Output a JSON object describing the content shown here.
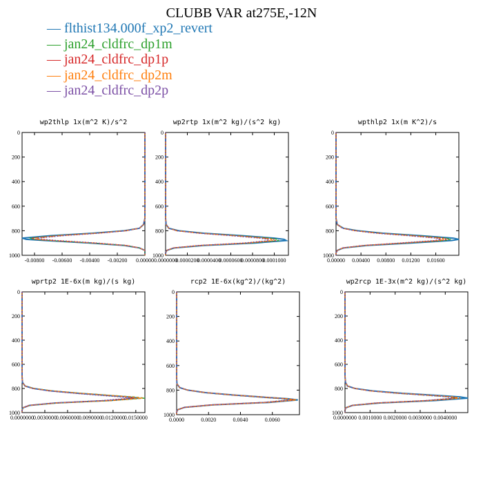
{
  "title": "CLUBB VAR at275E,-12N",
  "legend": [
    {
      "label": "flthist134.000f_xp2_revert",
      "color": "#1f77b4"
    },
    {
      "label": "jan24_cldfrc_dp1m",
      "color": "#2ca02c"
    },
    {
      "label": "jan24_cldfrc_dp1p",
      "color": "#d62728"
    },
    {
      "label": "jan24_cldfrc_dp2m",
      "color": "#ff7f0e"
    },
    {
      "label": "jan24_cldfrc_dp2p",
      "color": "#7b4fa5"
    }
  ],
  "chart_data": [
    {
      "type": "line",
      "title": "wp2thlp  1x(m^2 K)/s^2",
      "xlim": [
        -0.0089,
        0.0
      ],
      "ylim": [
        1000,
        0
      ],
      "yticks": [
        "0",
        "200",
        "400",
        "600",
        "800",
        "1000"
      ],
      "xticks": [
        "-0.00800",
        "-0.00600",
        "-0.00400",
        "-0.00200",
        "0.00000"
      ],
      "pressure": [
        0,
        100,
        200,
        300,
        400,
        500,
        600,
        700,
        750,
        780,
        800,
        820,
        840,
        860,
        870,
        880,
        900,
        920,
        940,
        960,
        980,
        1000
      ],
      "series": [
        {
          "values": [
            0,
            0,
            0,
            0,
            0,
            0,
            0,
            0,
            -0.0001,
            -0.0004,
            -0.0015,
            -0.0038,
            -0.0068,
            -0.0089,
            -0.0086,
            -0.0072,
            -0.004,
            -0.0015,
            -0.0004,
            0,
            0,
            0
          ]
        },
        {
          "values": [
            0,
            0,
            0,
            0,
            0,
            0,
            0,
            0,
            -0.0001,
            -0.0004,
            -0.0014,
            -0.0036,
            -0.0064,
            -0.0083,
            -0.0081,
            -0.0068,
            -0.0038,
            -0.0014,
            -0.0004,
            0,
            0,
            0
          ]
        },
        {
          "values": [
            0,
            0,
            0,
            0,
            0,
            0,
            0,
            0,
            -0.0001,
            -0.0004,
            -0.0014,
            -0.0035,
            -0.0063,
            -0.0082,
            -0.008,
            -0.0067,
            -0.0037,
            -0.0014,
            -0.0004,
            0,
            0,
            0
          ]
        },
        {
          "values": [
            0,
            0,
            0,
            0,
            0,
            0,
            0,
            0,
            -0.0001,
            -0.0004,
            -0.0014,
            -0.0034,
            -0.0061,
            -0.0079,
            -0.0077,
            -0.0065,
            -0.0036,
            -0.0013,
            -0.0004,
            0,
            0,
            0
          ]
        },
        {
          "values": [
            0,
            0,
            0,
            0,
            0,
            0,
            0,
            0,
            -0.0001,
            -0.0004,
            -0.0013,
            -0.0033,
            -0.0059,
            -0.0077,
            -0.0075,
            -0.0063,
            -0.0035,
            -0.0013,
            -0.0004,
            0,
            0,
            0
          ]
        }
      ]
    },
    {
      "type": "line",
      "title": "wp2rtp  1x(m^2 kg)/(s^2 kg)",
      "xlim": [
        0.0,
        0.000113
      ],
      "ylim": [
        1000,
        0
      ],
      "yticks": [
        "0",
        "200",
        "400",
        "600",
        "800",
        "1000"
      ],
      "xticks": [
        "0.0000000",
        "0.0000200",
        "0.0000400",
        "0.0000600",
        "0.0000800",
        "0.0001000"
      ],
      "pressure": [
        0,
        100,
        200,
        300,
        400,
        500,
        600,
        700,
        750,
        780,
        800,
        820,
        840,
        860,
        870,
        880,
        900,
        920,
        940,
        960,
        980,
        1000
      ],
      "series": [
        {
          "values": [
            0,
            0,
            0,
            0,
            0,
            0,
            0,
            0,
            5e-07,
            3e-06,
            1.2e-05,
            3.5e-05,
            7e-05,
            0.0001,
            0.000109,
            0.000111,
            8.2e-05,
            3.5e-05,
            8e-06,
            1e-06,
            0,
            0
          ]
        },
        {
          "values": [
            0,
            0,
            0,
            0,
            0,
            0,
            0,
            0,
            5e-07,
            3e-06,
            1.1e-05,
            3.3e-05,
            6.6e-05,
            9.5e-05,
            0.000103,
            0.000104,
            7.8e-05,
            3.3e-05,
            8e-06,
            1e-06,
            0,
            0
          ]
        },
        {
          "values": [
            0,
            0,
            0,
            0,
            0,
            0,
            0,
            0,
            5e-07,
            3e-06,
            1.1e-05,
            3.2e-05,
            6.4e-05,
            9.2e-05,
            0.0001,
            0.000101,
            7.6e-05,
            3.2e-05,
            7e-06,
            1e-06,
            0,
            0
          ]
        },
        {
          "values": [
            0,
            0,
            0,
            0,
            0,
            0,
            0,
            0,
            5e-07,
            3e-06,
            1e-05,
            3.1e-05,
            6.2e-05,
            8.9e-05,
            9.7e-05,
            9.8e-05,
            7.4e-05,
            3.1e-05,
            7e-06,
            1e-06,
            0,
            0
          ]
        },
        {
          "values": [
            0,
            0,
            0,
            0,
            0,
            0,
            0,
            0,
            5e-07,
            3e-06,
            1e-05,
            3e-05,
            6e-05,
            8.6e-05,
            9.4e-05,
            9.5e-05,
            7.2e-05,
            3e-05,
            7e-06,
            1e-06,
            0,
            0
          ]
        }
      ]
    },
    {
      "type": "line",
      "title": "wpthlp2  1x(m K^2)/s",
      "xlim": [
        0.0,
        0.0197
      ],
      "ylim": [
        1000,
        0
      ],
      "yticks": [
        "0",
        "200",
        "400",
        "600",
        "800",
        "1000"
      ],
      "xticks": [
        "0.00000",
        "0.00400",
        "0.00800",
        "0.01200",
        "0.01600"
      ],
      "pressure": [
        0,
        100,
        200,
        300,
        400,
        500,
        600,
        700,
        750,
        780,
        800,
        820,
        840,
        860,
        870,
        880,
        900,
        920,
        940,
        960,
        980,
        1000
      ],
      "series": [
        {
          "values": [
            0,
            0,
            0,
            0,
            0,
            0,
            0,
            0,
            0.0002,
            0.0012,
            0.0035,
            0.0075,
            0.0135,
            0.0188,
            0.0197,
            0.0185,
            0.012,
            0.005,
            0.0012,
            0.0002,
            0,
            0
          ]
        },
        {
          "values": [
            0,
            0,
            0,
            0,
            0,
            0,
            0,
            0,
            0.0002,
            0.0011,
            0.0033,
            0.0071,
            0.0127,
            0.0176,
            0.0184,
            0.0173,
            0.0112,
            0.0047,
            0.0011,
            0.0002,
            0,
            0
          ]
        },
        {
          "values": [
            0,
            0,
            0,
            0,
            0,
            0,
            0,
            0,
            0.0002,
            0.0011,
            0.0032,
            0.0069,
            0.0124,
            0.0172,
            0.018,
            0.0169,
            0.011,
            0.0046,
            0.0011,
            0.0002,
            0,
            0
          ]
        },
        {
          "values": [
            0,
            0,
            0,
            0,
            0,
            0,
            0,
            0,
            0.0002,
            0.0011,
            0.0031,
            0.0066,
            0.0119,
            0.0165,
            0.0173,
            0.0162,
            0.0105,
            0.0044,
            0.0011,
            0.0002,
            0,
            0
          ]
        },
        {
          "values": [
            0,
            0,
            0,
            0,
            0,
            0,
            0,
            0,
            0.0002,
            0.001,
            0.003,
            0.0064,
            0.0115,
            0.016,
            0.0168,
            0.0157,
            0.0102,
            0.0043,
            0.001,
            0.0002,
            0,
            0
          ]
        }
      ]
    },
    {
      "type": "line",
      "title": "wprtp2  1E-6x(m kg)/(s kg)",
      "xlim": [
        0.0,
        0.0162
      ],
      "ylim": [
        1000,
        0
      ],
      "yticks": [
        "0",
        "200",
        "400",
        "600",
        "800",
        "1000"
      ],
      "xticks": [
        "0.0000000",
        "0.0030000",
        "0.0060000",
        "0.0090000",
        "0.0120000",
        "0.0150000"
      ],
      "pressure": [
        0,
        100,
        200,
        300,
        400,
        500,
        600,
        700,
        750,
        780,
        800,
        820,
        840,
        860,
        870,
        880,
        900,
        920,
        940,
        960,
        980,
        1000
      ],
      "series": [
        {
          "values": [
            0,
            0,
            0,
            0,
            0,
            0,
            0,
            0,
            5e-05,
            0.0004,
            0.0015,
            0.0038,
            0.0075,
            0.0118,
            0.014,
            0.0155,
            0.0115,
            0.0045,
            0.001,
            0.0001,
            0,
            0
          ]
        },
        {
          "values": [
            0,
            0,
            0,
            0,
            0,
            0,
            0,
            0,
            5e-05,
            0.0004,
            0.0016,
            0.004,
            0.0079,
            0.0124,
            0.0147,
            0.0162,
            0.012,
            0.0047,
            0.001,
            0.0001,
            0,
            0
          ]
        },
        {
          "values": [
            0,
            0,
            0,
            0,
            0,
            0,
            0,
            0,
            5e-05,
            0.0004,
            0.0014,
            0.0036,
            0.0071,
            0.0112,
            0.0133,
            0.0147,
            0.0109,
            0.0043,
            0.0009,
            0.0001,
            0,
            0
          ]
        },
        {
          "values": [
            0,
            0,
            0,
            0,
            0,
            0,
            0,
            0,
            5e-05,
            0.0004,
            0.0015,
            0.0039,
            0.0077,
            0.0121,
            0.0144,
            0.0159,
            0.0118,
            0.0046,
            0.001,
            0.0001,
            0,
            0
          ]
        },
        {
          "values": [
            0,
            0,
            0,
            0,
            0,
            0,
            0,
            0,
            5e-05,
            0.0004,
            0.0014,
            0.0035,
            0.0069,
            0.0109,
            0.013,
            0.0143,
            0.0106,
            0.0042,
            0.0009,
            0.0001,
            0,
            0
          ]
        }
      ]
    },
    {
      "type": "line",
      "title": "rcp2  1E-6x(kg^2)/(kg^2)",
      "xlim": [
        0.0,
        0.0077
      ],
      "ylim": [
        1000,
        0
      ],
      "yticks": [
        "0",
        "200",
        "400",
        "600",
        "800",
        "1000"
      ],
      "xticks": [
        "0.0000",
        "0.0020",
        "0.0040",
        "0.0060"
      ],
      "pressure": [
        0,
        100,
        200,
        300,
        400,
        500,
        600,
        700,
        750,
        780,
        800,
        820,
        840,
        860,
        870,
        880,
        900,
        920,
        940,
        960,
        980,
        1000
      ],
      "series": [
        {
          "values": [
            0,
            0,
            0,
            0,
            0,
            0,
            0,
            0,
            2e-05,
            0.0002,
            0.0007,
            0.0018,
            0.0036,
            0.0058,
            0.007,
            0.0076,
            0.0058,
            0.0023,
            0.0005,
            5e-05,
            0,
            0
          ]
        },
        {
          "values": [
            0,
            0,
            0,
            0,
            0,
            0,
            0,
            0,
            2e-05,
            0.0002,
            0.0007,
            0.0017,
            0.0034,
            0.0055,
            0.0066,
            0.0072,
            0.0055,
            0.0022,
            0.0005,
            5e-05,
            0,
            0
          ]
        },
        {
          "values": [
            0,
            0,
            0,
            0,
            0,
            0,
            0,
            0,
            2e-05,
            0.0002,
            0.0007,
            0.0018,
            0.0035,
            0.0057,
            0.0068,
            0.0074,
            0.0056,
            0.0022,
            0.0005,
            5e-05,
            0,
            0
          ]
        },
        {
          "values": [
            0,
            0,
            0,
            0,
            0,
            0,
            0,
            0,
            2e-05,
            0.0002,
            0.0007,
            0.0018,
            0.0036,
            0.0058,
            0.0069,
            0.0075,
            0.0057,
            0.0023,
            0.0005,
            5e-05,
            0,
            0
          ]
        },
        {
          "values": [
            0,
            0,
            0,
            0,
            0,
            0,
            0,
            0,
            2e-05,
            0.0002,
            0.0007,
            0.0017,
            0.0034,
            0.0055,
            0.0066,
            0.0071,
            0.0054,
            0.0021,
            0.0005,
            5e-05,
            0,
            0
          ]
        }
      ]
    },
    {
      "type": "line",
      "title": "wp2rcp  1E-3x(m^2 kg)/(s^2 kg)",
      "xlim": [
        0.0,
        0.0049
      ],
      "ylim": [
        1000,
        0
      ],
      "yticks": [
        "0",
        "200",
        "400",
        "600",
        "800",
        "1000"
      ],
      "xticks": [
        "0.0000000",
        "0.0010000",
        "0.0020000",
        "0.0030000",
        "0.0040000"
      ],
      "pressure": [
        0,
        100,
        200,
        300,
        400,
        500,
        600,
        700,
        750,
        780,
        800,
        820,
        840,
        860,
        870,
        880,
        900,
        920,
        940,
        960,
        980,
        1000
      ],
      "series": [
        {
          "values": [
            0,
            0,
            0,
            0,
            0,
            0,
            0,
            0,
            2e-05,
            0.0001,
            0.0004,
            0.0011,
            0.0023,
            0.0039,
            0.0046,
            0.0049,
            0.0036,
            0.0014,
            0.0003,
            3e-05,
            0,
            0
          ]
        },
        {
          "values": [
            0,
            0,
            0,
            0,
            0,
            0,
            0,
            0,
            2e-05,
            0.0001,
            0.0004,
            0.001,
            0.0021,
            0.0035,
            0.0042,
            0.0044,
            0.0033,
            0.0013,
            0.0003,
            3e-05,
            0,
            0
          ]
        },
        {
          "values": [
            0,
            0,
            0,
            0,
            0,
            0,
            0,
            0,
            2e-05,
            0.0001,
            0.0004,
            0.001,
            0.0021,
            0.0036,
            0.0042,
            0.0045,
            0.0033,
            0.0013,
            0.0003,
            3e-05,
            0,
            0
          ]
        },
        {
          "values": [
            0,
            0,
            0,
            0,
            0,
            0,
            0,
            0,
            2e-05,
            0.0001,
            0.0004,
            0.001,
            0.0022,
            0.0037,
            0.0043,
            0.0046,
            0.0034,
            0.0013,
            0.0003,
            3e-05,
            0,
            0
          ]
        },
        {
          "values": [
            0,
            0,
            0,
            0,
            0,
            0,
            0,
            0,
            2e-05,
            0.0001,
            0.0004,
            0.001,
            0.0021,
            0.0035,
            0.0041,
            0.0043,
            0.0032,
            0.0012,
            0.0003,
            3e-05,
            0,
            0
          ]
        }
      ]
    }
  ]
}
